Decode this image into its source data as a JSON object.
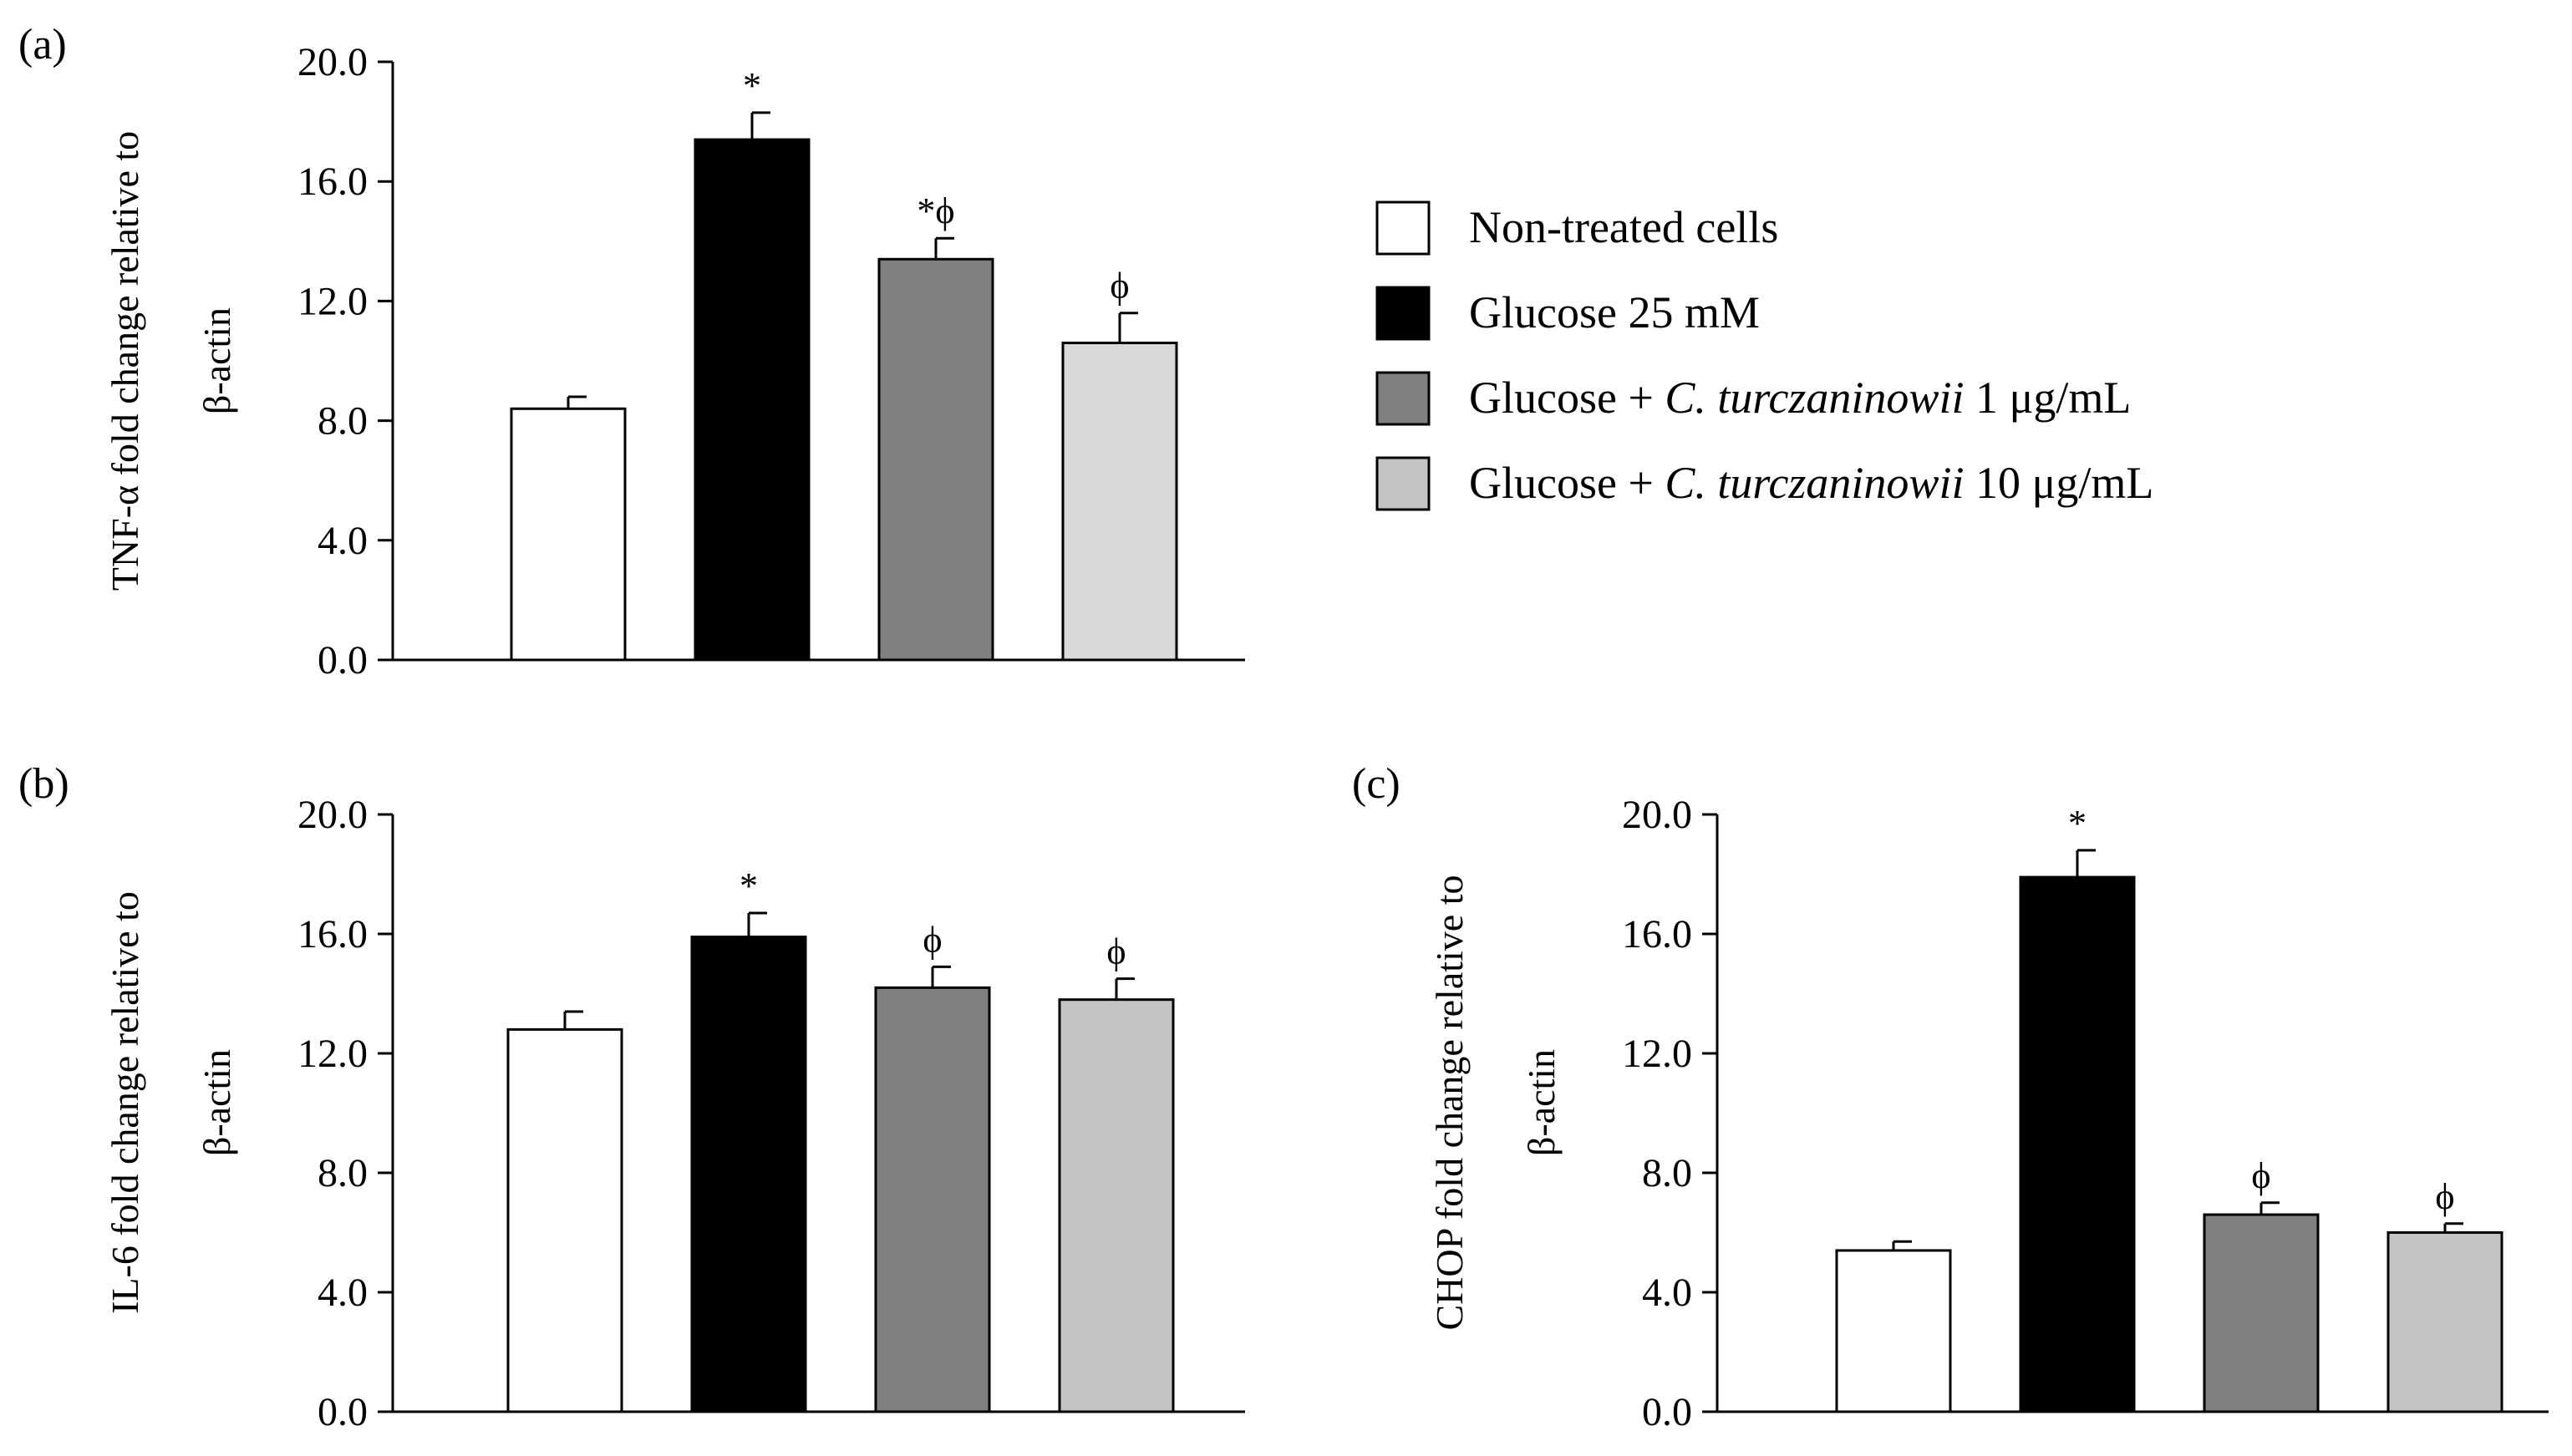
{
  "figure": {
    "legend": {
      "entries": [
        {
          "prefix": "Non-treated cells",
          "italic": "",
          "suffix": "",
          "color": "#ffffff"
        },
        {
          "prefix": "Glucose 25 mM",
          "italic": "",
          "suffix": "",
          "color": "#000000"
        },
        {
          "prefix": "Glucose + ",
          "italic": "C. turczaninowii",
          "suffix": "  1 μg/mL",
          "color": "#808080"
        },
        {
          "prefix": "Glucose + ",
          "italic": "C. turczaninowii",
          "suffix": " 10 μg/mL",
          "color": "#c4c4c4"
        }
      ]
    }
  },
  "chart_data": [
    {
      "type": "bar",
      "panel_label": "(a)",
      "ylabel_line1": "TNF-α fold change relative to",
      "ylabel_line2": "β-actin",
      "ylim": [
        0,
        20
      ],
      "yticks": [
        "0.0",
        "4.0",
        "8.0",
        "12.0",
        "16.0",
        "20.0"
      ],
      "categories": [
        "Non-treated cells",
        "Glucose 25 mM",
        "Glucose + C. turczaninowii 1 μg/mL",
        "Glucose + C. turczaninowii 10 μg/mL"
      ],
      "values": [
        8.4,
        17.4,
        13.4,
        10.6
      ],
      "errors": [
        0.4,
        0.9,
        0.7,
        1.0
      ],
      "annotations": [
        "",
        "*",
        "*ϕ",
        "ϕ"
      ],
      "colors": [
        "#ffffff",
        "#000000",
        "#808080",
        "#d9d9d9"
      ]
    },
    {
      "type": "bar",
      "panel_label": "(b)",
      "ylabel_line1": "IL-6 fold change relative to",
      "ylabel_line2": "β-actin",
      "ylim": [
        0,
        20
      ],
      "yticks": [
        "0.0",
        "4.0",
        "8.0",
        "12.0",
        "16.0",
        "20.0"
      ],
      "categories": [
        "Non-treated cells",
        "Glucose 25 mM",
        "Glucose + C. turczaninowii 1 μg/mL",
        "Glucose + C. turczaninowii 10 μg/mL"
      ],
      "values": [
        12.8,
        15.9,
        14.2,
        13.8
      ],
      "errors": [
        0.6,
        0.8,
        0.7,
        0.7
      ],
      "annotations": [
        "",
        "*",
        "ϕ",
        "ϕ"
      ],
      "colors": [
        "#ffffff",
        "#000000",
        "#808080",
        "#c4c4c4"
      ]
    },
    {
      "type": "bar",
      "panel_label": "(c)",
      "ylabel_line1": "CHOP fold change relative to",
      "ylabel_line2": "β-actin",
      "ylim": [
        0,
        20
      ],
      "yticks": [
        "0.0",
        "4.0",
        "8.0",
        "12.0",
        "16.0",
        "20.0"
      ],
      "categories": [
        "Non-treated cells",
        "Glucose 25 mM",
        "Glucose + C. turczaninowii 1 μg/mL",
        "Glucose + C. turczaninowii 10 μg/mL"
      ],
      "values": [
        5.4,
        17.9,
        6.6,
        6.0
      ],
      "errors": [
        0.3,
        0.9,
        0.4,
        0.3
      ],
      "annotations": [
        "",
        "*",
        "ϕ",
        "ϕ"
      ],
      "colors": [
        "#ffffff",
        "#000000",
        "#808080",
        "#c4c4c4"
      ]
    }
  ]
}
